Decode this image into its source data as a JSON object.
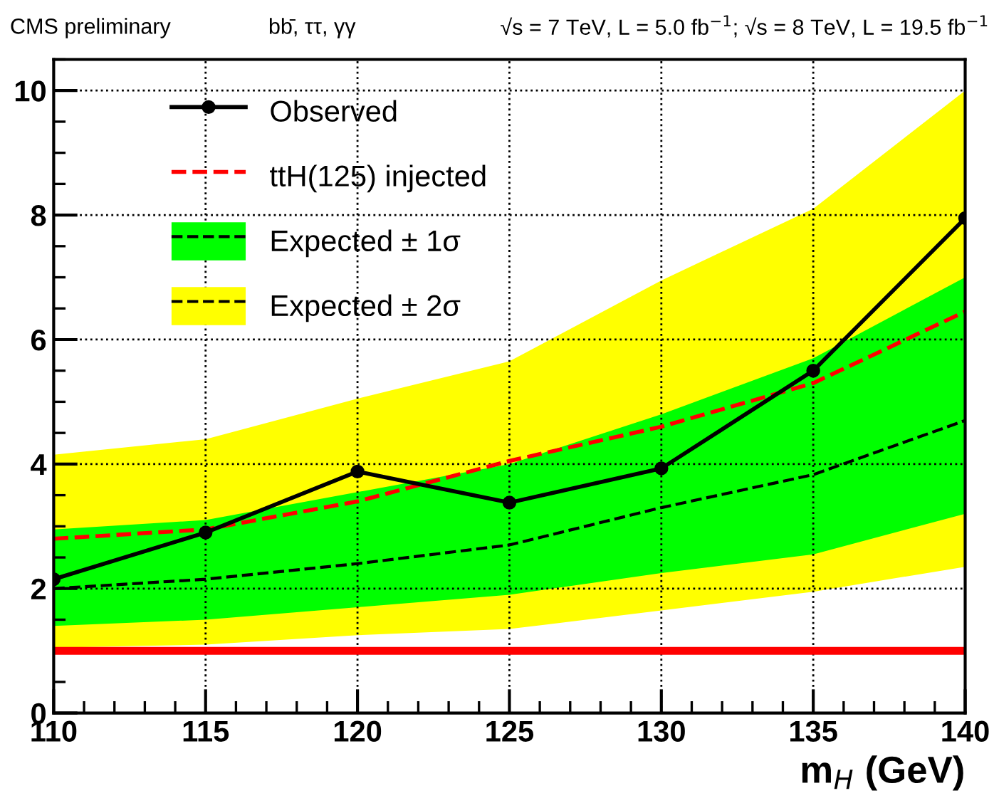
{
  "chart_data": {
    "type": "line",
    "xlabel": "m$_{H}$ (GeV)",
    "annotations": [
      "CMS preliminary",
      "bb̄, ττ, γγ",
      "√s = 7 TeV, L = 5.0 fb$^{−1}$; √s = 8 TeV, L = 19.5 fb$^{−1}$"
    ],
    "x": [
      110,
      115,
      120,
      125,
      130,
      135,
      140
    ],
    "series": [
      {
        "name": "Expected ± 2σ",
        "type": "line",
        "color": "#ffff00",
        "values": [
          null,
          null,
          null,
          null,
          null,
          null,
          null
        ],
        "lower": [
          1.05,
          1.1,
          1.25,
          1.35,
          1.65,
          1.95,
          2.35
        ],
        "upper": [
          4.15,
          4.4,
          5.05,
          5.65,
          6.95,
          8.1,
          10.0
        ]
      },
      {
        "name": "Expected ± 1σ",
        "type": "line",
        "color": "#00ff00",
        "values": [
          null,
          null,
          null,
          null,
          null,
          null,
          null
        ],
        "lower": [
          1.4,
          1.5,
          1.7,
          1.9,
          2.25,
          2.55,
          3.2
        ],
        "upper": [
          2.95,
          3.1,
          3.55,
          4.0,
          4.8,
          5.7,
          7.0
        ]
      },
      {
        "type": "line",
        "color": "#000000",
        "line_style": "dashed",
        "marker": "none",
        "values": [
          2.0,
          2.15,
          2.4,
          2.7,
          3.3,
          3.83,
          4.7
        ]
      },
      {
        "name": "ttH(125) injected",
        "color": "#ff0000",
        "line_style": "dashed",
        "marker": "none",
        "values": [
          2.8,
          2.95,
          3.4,
          4.05,
          4.6,
          5.3,
          6.45
        ]
      },
      {
        "name": "Observed",
        "color": "#000000",
        "line_style": "solid",
        "marker": "circle",
        "values": [
          2.15,
          2.9,
          3.88,
          3.38,
          3.93,
          5.5,
          7.95
        ]
      }
    ],
    "ref_lines": [
      {
        "axis": "y",
        "value": 1,
        "color": "#ff0000"
      }
    ],
    "xlim": [
      110,
      140
    ],
    "xticks": [
      110,
      115,
      120,
      125,
      130,
      135,
      140
    ],
    "ylim": [
      0,
      10.5
    ],
    "yticks": [
      0,
      2,
      4,
      6,
      8,
      10
    ],
    "grid": true,
    "legend": "top left"
  }
}
